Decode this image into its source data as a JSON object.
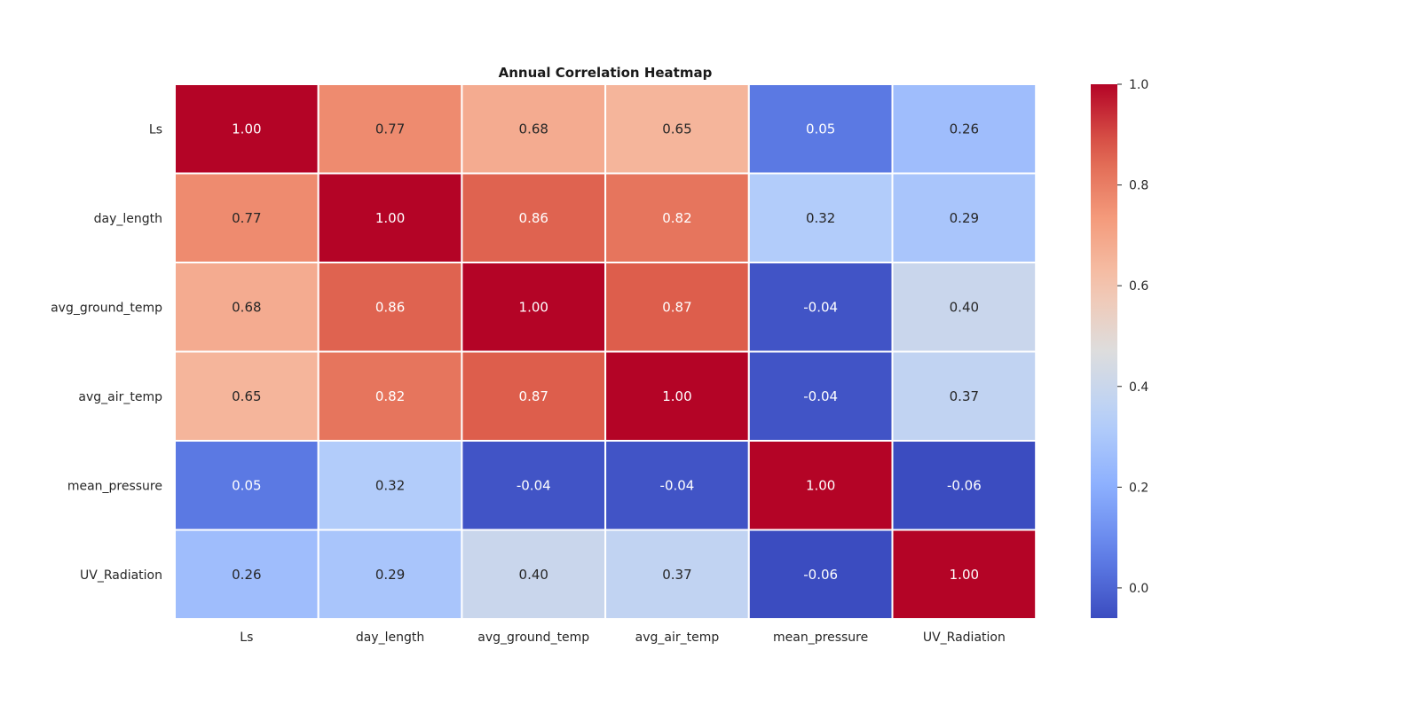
{
  "chart_data": {
    "type": "heatmap",
    "title": "Annual Correlation Heatmap",
    "rows": [
      "Ls",
      "day_length",
      "avg_ground_temp",
      "avg_air_temp",
      "mean_pressure",
      "UV_Radiation"
    ],
    "columns": [
      "Ls",
      "day_length",
      "avg_ground_temp",
      "avg_air_temp",
      "mean_pressure",
      "UV_Radiation"
    ],
    "values": [
      [
        1.0,
        0.77,
        0.68,
        0.65,
        0.05,
        0.26
      ],
      [
        0.77,
        1.0,
        0.86,
        0.82,
        0.32,
        0.29
      ],
      [
        0.68,
        0.86,
        1.0,
        0.87,
        -0.04,
        0.4
      ],
      [
        0.65,
        0.82,
        0.87,
        1.0,
        -0.04,
        0.37
      ],
      [
        0.05,
        0.32,
        -0.04,
        -0.04,
        1.0,
        -0.06
      ],
      [
        0.26,
        0.29,
        0.4,
        0.37,
        -0.06,
        1.0
      ]
    ],
    "annotation_format": "2 decimals",
    "colormap": "coolwarm",
    "colorbar": {
      "range": [
        -0.06,
        1.0
      ],
      "ticks": [
        0.0,
        0.2,
        0.4,
        0.6,
        0.8,
        1.0
      ],
      "tick_labels": [
        "0.0",
        "0.2",
        "0.4",
        "0.6",
        "0.8",
        "1.0"
      ],
      "placement": "right"
    },
    "cell_border_color": "#ffffff",
    "colors": {
      "low": "#3b4cc0",
      "mid": "#dddddd",
      "high": "#b40426"
    }
  }
}
